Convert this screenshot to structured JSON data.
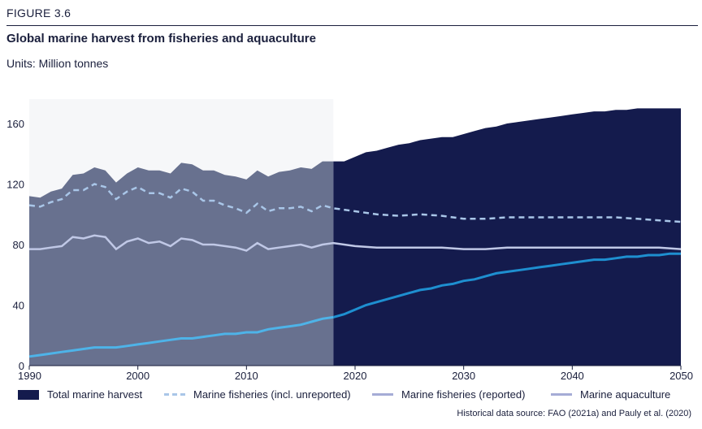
{
  "header": {
    "figure_label": "FIGURE 3.6",
    "title": "Global marine harvest from fisheries and aquaculture",
    "units": "Units: Million tonnes"
  },
  "legend": {
    "items": [
      {
        "label": "Total marine harvest",
        "style": "box",
        "color": "#141b4d"
      },
      {
        "label": "Marine fisheries (incl. unreported)",
        "style": "dash",
        "color": "#a9c6e8"
      },
      {
        "label": "Marine fisheries (reported)",
        "style": "line",
        "color": "#a5acd6"
      },
      {
        "label": "Marine aquaculture",
        "style": "line",
        "color": "#a5acd6"
      }
    ]
  },
  "source": "Historical data source: FAO (2021a) and Pauly et al. (2020)",
  "colors": {
    "historical_area": "#68718f",
    "projection_area": "#141b4d",
    "historical_background": "#f6f7f9",
    "fisheries_unreported": "#a9c6e8",
    "fisheries_reported": "#c0c8e6",
    "aquaculture": "#4eb3e8",
    "aquaculture_projection": "#1e8fd0"
  },
  "chart_data": {
    "type": "area",
    "xlim": [
      1990,
      2050
    ],
    "ylim": [
      0,
      170
    ],
    "x_ticks": [
      1990,
      2000,
      2010,
      2020,
      2030,
      2040,
      2050
    ],
    "y_ticks": [
      0,
      40,
      80,
      120,
      160
    ],
    "historical_end": 2018,
    "series": [
      {
        "name": "Total marine harvest",
        "style": "area",
        "points": [
          [
            1990,
            112
          ],
          [
            1991,
            111
          ],
          [
            1992,
            115
          ],
          [
            1993,
            117
          ],
          [
            1994,
            126
          ],
          [
            1995,
            127
          ],
          [
            1996,
            131
          ],
          [
            1997,
            129
          ],
          [
            1998,
            121
          ],
          [
            1999,
            127
          ],
          [
            2000,
            131
          ],
          [
            2001,
            129
          ],
          [
            2002,
            129
          ],
          [
            2003,
            127
          ],
          [
            2004,
            134
          ],
          [
            2005,
            133
          ],
          [
            2006,
            129
          ],
          [
            2007,
            129
          ],
          [
            2008,
            126
          ],
          [
            2009,
            125
          ],
          [
            2010,
            123
          ],
          [
            2011,
            129
          ],
          [
            2012,
            125
          ],
          [
            2013,
            128
          ],
          [
            2014,
            129
          ],
          [
            2015,
            131
          ],
          [
            2016,
            130
          ],
          [
            2017,
            135
          ],
          [
            2018,
            135
          ],
          [
            2019,
            135
          ],
          [
            2020,
            138
          ],
          [
            2021,
            141
          ],
          [
            2022,
            142
          ],
          [
            2023,
            144
          ],
          [
            2024,
            146
          ],
          [
            2025,
            147
          ],
          [
            2026,
            149
          ],
          [
            2027,
            150
          ],
          [
            2028,
            151
          ],
          [
            2029,
            151
          ],
          [
            2030,
            153
          ],
          [
            2031,
            155
          ],
          [
            2032,
            157
          ],
          [
            2033,
            158
          ],
          [
            2034,
            160
          ],
          [
            2035,
            161
          ],
          [
            2036,
            162
          ],
          [
            2037,
            163
          ],
          [
            2038,
            164
          ],
          [
            2039,
            165
          ],
          [
            2040,
            166
          ],
          [
            2041,
            167
          ],
          [
            2042,
            168
          ],
          [
            2043,
            168
          ],
          [
            2044,
            169
          ],
          [
            2045,
            169
          ],
          [
            2046,
            170
          ],
          [
            2047,
            170
          ],
          [
            2048,
            170
          ],
          [
            2049,
            170
          ],
          [
            2050,
            170
          ]
        ]
      },
      {
        "name": "Marine fisheries (incl. unreported)",
        "style": "dash",
        "points": [
          [
            1990,
            106
          ],
          [
            1991,
            105
          ],
          [
            1992,
            108
          ],
          [
            1993,
            110
          ],
          [
            1994,
            116
          ],
          [
            1995,
            116
          ],
          [
            1996,
            120
          ],
          [
            1997,
            118
          ],
          [
            1998,
            110
          ],
          [
            1999,
            115
          ],
          [
            2000,
            118
          ],
          [
            2001,
            114
          ],
          [
            2002,
            114
          ],
          [
            2003,
            111
          ],
          [
            2004,
            117
          ],
          [
            2005,
            115
          ],
          [
            2006,
            109
          ],
          [
            2007,
            109
          ],
          [
            2008,
            106
          ],
          [
            2009,
            104
          ],
          [
            2010,
            101
          ],
          [
            2011,
            107
          ],
          [
            2012,
            102
          ],
          [
            2013,
            104
          ],
          [
            2014,
            104
          ],
          [
            2015,
            105
          ],
          [
            2016,
            102
          ],
          [
            2017,
            106
          ],
          [
            2018,
            104
          ],
          [
            2020,
            102
          ],
          [
            2022,
            100
          ],
          [
            2024,
            99
          ],
          [
            2026,
            100
          ],
          [
            2028,
            99
          ],
          [
            2030,
            97
          ],
          [
            2032,
            97
          ],
          [
            2034,
            98
          ],
          [
            2036,
            98
          ],
          [
            2038,
            98
          ],
          [
            2040,
            98
          ],
          [
            2042,
            98
          ],
          [
            2044,
            98
          ],
          [
            2046,
            97
          ],
          [
            2048,
            96
          ],
          [
            2050,
            95
          ]
        ]
      },
      {
        "name": "Marine fisheries (reported)",
        "style": "line",
        "points": [
          [
            1990,
            77
          ],
          [
            1991,
            77
          ],
          [
            1992,
            78
          ],
          [
            1993,
            79
          ],
          [
            1994,
            85
          ],
          [
            1995,
            84
          ],
          [
            1996,
            86
          ],
          [
            1997,
            85
          ],
          [
            1998,
            77
          ],
          [
            1999,
            82
          ],
          [
            2000,
            84
          ],
          [
            2001,
            81
          ],
          [
            2002,
            82
          ],
          [
            2003,
            79
          ],
          [
            2004,
            84
          ],
          [
            2005,
            83
          ],
          [
            2006,
            80
          ],
          [
            2007,
            80
          ],
          [
            2008,
            79
          ],
          [
            2009,
            78
          ],
          [
            2010,
            76
          ],
          [
            2011,
            81
          ],
          [
            2012,
            77
          ],
          [
            2013,
            78
          ],
          [
            2014,
            79
          ],
          [
            2015,
            80
          ],
          [
            2016,
            78
          ],
          [
            2017,
            80
          ],
          [
            2018,
            81
          ],
          [
            2020,
            79
          ],
          [
            2022,
            78
          ],
          [
            2024,
            78
          ],
          [
            2026,
            78
          ],
          [
            2028,
            78
          ],
          [
            2030,
            77
          ],
          [
            2032,
            77
          ],
          [
            2034,
            78
          ],
          [
            2036,
            78
          ],
          [
            2038,
            78
          ],
          [
            2040,
            78
          ],
          [
            2042,
            78
          ],
          [
            2044,
            78
          ],
          [
            2046,
            78
          ],
          [
            2048,
            78
          ],
          [
            2050,
            77
          ]
        ]
      },
      {
        "name": "Marine aquaculture",
        "style": "line",
        "points": [
          [
            1990,
            6
          ],
          [
            1991,
            7
          ],
          [
            1992,
            8
          ],
          [
            1993,
            9
          ],
          [
            1994,
            10
          ],
          [
            1995,
            11
          ],
          [
            1996,
            12
          ],
          [
            1997,
            12
          ],
          [
            1998,
            12
          ],
          [
            1999,
            13
          ],
          [
            2000,
            14
          ],
          [
            2001,
            15
          ],
          [
            2002,
            16
          ],
          [
            2003,
            17
          ],
          [
            2004,
            18
          ],
          [
            2005,
            18
          ],
          [
            2006,
            19
          ],
          [
            2007,
            20
          ],
          [
            2008,
            21
          ],
          [
            2009,
            21
          ],
          [
            2010,
            22
          ],
          [
            2011,
            22
          ],
          [
            2012,
            24
          ],
          [
            2013,
            25
          ],
          [
            2014,
            26
          ],
          [
            2015,
            27
          ],
          [
            2016,
            29
          ],
          [
            2017,
            31
          ],
          [
            2018,
            32
          ],
          [
            2019,
            34
          ],
          [
            2020,
            37
          ],
          [
            2021,
            40
          ],
          [
            2022,
            42
          ],
          [
            2023,
            44
          ],
          [
            2024,
            46
          ],
          [
            2025,
            48
          ],
          [
            2026,
            50
          ],
          [
            2027,
            51
          ],
          [
            2028,
            53
          ],
          [
            2029,
            54
          ],
          [
            2030,
            56
          ],
          [
            2031,
            57
          ],
          [
            2032,
            59
          ],
          [
            2033,
            61
          ],
          [
            2034,
            62
          ],
          [
            2035,
            63
          ],
          [
            2036,
            64
          ],
          [
            2037,
            65
          ],
          [
            2038,
            66
          ],
          [
            2039,
            67
          ],
          [
            2040,
            68
          ],
          [
            2041,
            69
          ],
          [
            2042,
            70
          ],
          [
            2043,
            70
          ],
          [
            2044,
            71
          ],
          [
            2045,
            72
          ],
          [
            2046,
            72
          ],
          [
            2047,
            73
          ],
          [
            2048,
            73
          ],
          [
            2049,
            74
          ],
          [
            2050,
            74
          ]
        ]
      }
    ]
  }
}
